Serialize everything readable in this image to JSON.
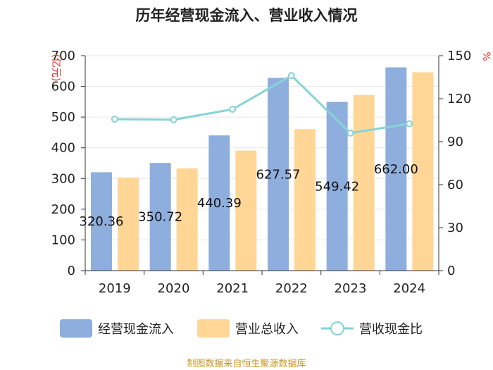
{
  "chart_data": {
    "type": "bar",
    "title": "历年经营现金流入、营业收入情况",
    "categories": [
      "2019",
      "2020",
      "2021",
      "2022",
      "2023",
      "2024"
    ],
    "series": [
      {
        "name": "经营现金流入",
        "type": "bar",
        "axis": "left",
        "color": "#8eaedd",
        "values": [
          320.36,
          350.72,
          440.39,
          627.57,
          549.42,
          662.0
        ]
      },
      {
        "name": "营业总收入",
        "type": "bar",
        "axis": "left",
        "color": "#ffd696",
        "values": [
          303,
          333,
          391,
          461,
          572,
          646
        ]
      },
      {
        "name": "营收现金比",
        "type": "line",
        "axis": "right",
        "color": "#86d3d8",
        "values": [
          105.7,
          105.3,
          112.6,
          136.1,
          96.0,
          102.5
        ]
      }
    ],
    "data_labels": [
      "320.36",
      "350.72",
      "440.39",
      "627.57",
      "549.42",
      "662.00"
    ],
    "y_left": {
      "label": "(亿元)",
      "ylim": [
        0,
        700
      ],
      "ticks": [
        0,
        100,
        200,
        300,
        400,
        500,
        600,
        700
      ]
    },
    "y_right": {
      "label": "%",
      "ylim": [
        0,
        150
      ],
      "ticks": [
        0,
        30,
        60,
        90,
        120,
        150
      ]
    },
    "grid": true,
    "legend_position": "bottom",
    "source": "制图数据来自恒生聚源数据库"
  }
}
